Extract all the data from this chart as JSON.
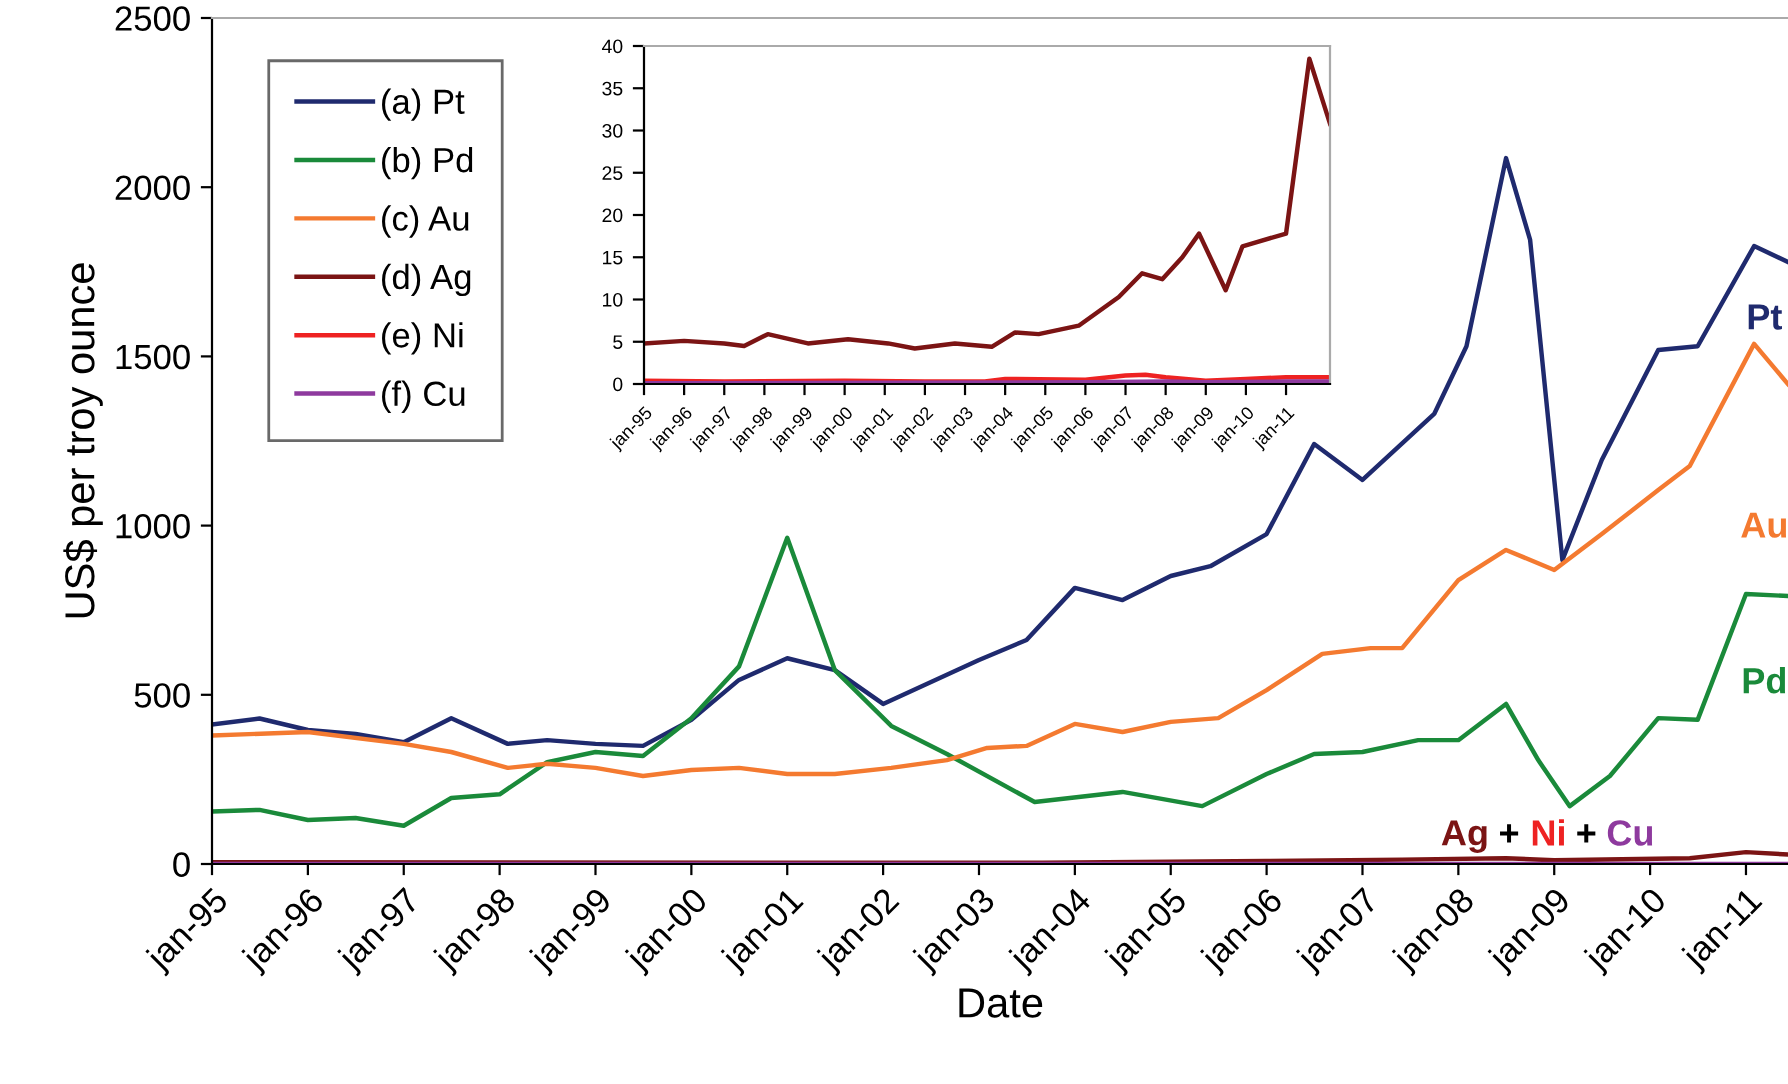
{
  "chart_data": [
    {
      "type": "line",
      "xlabel": "Date",
      "ylabel": "US$ per troy ounce",
      "legend": "top left",
      "xlim": [
        "1995-01",
        "2011-06-10"
      ],
      "ylim": [
        0,
        2500
      ],
      "yticks": [
        0,
        500,
        1000,
        1500,
        2000,
        2500
      ],
      "xticks": [
        {
          "value": "1995-01",
          "label": "jan-95"
        },
        {
          "value": "1996-01",
          "label": "jan-96"
        },
        {
          "value": "1997-01",
          "label": "jan-97"
        },
        {
          "value": "1998-01",
          "label": "jan-98"
        },
        {
          "value": "1999-01",
          "label": "jan-99"
        },
        {
          "value": "2000-01",
          "label": "jan-00"
        },
        {
          "value": "2001-01",
          "label": "jan-01"
        },
        {
          "value": "2002-01",
          "label": "jan-02"
        },
        {
          "value": "2003-01",
          "label": "jan-03"
        },
        {
          "value": "2004-01",
          "label": "jan-04"
        },
        {
          "value": "2005-01",
          "label": "jan-05"
        },
        {
          "value": "2006-01",
          "label": "jan-06"
        },
        {
          "value": "2007-01",
          "label": "jan-07"
        },
        {
          "value": "2008-01",
          "label": "jan-08"
        },
        {
          "value": "2009-01",
          "label": "jan-09"
        },
        {
          "value": "2010-01",
          "label": "jan-10"
        },
        {
          "value": "2011-01",
          "label": "jan-11"
        }
      ],
      "series": [
        {
          "name": "(a) Pt",
          "color": "#1f2a6e",
          "x": [
            "1995-01",
            "1995-07",
            "1996-01",
            "1996-07",
            "1997-01",
            "1997-07",
            "1998-02",
            "1998-07",
            "1999-01",
            "1999-07",
            "2000-01",
            "2000-07",
            "2001-01",
            "2001-07",
            "2002-01",
            "2003-01",
            "2003-07",
            "2004-01",
            "2004-07",
            "2005-01",
            "2005-06",
            "2006-01",
            "2006-07",
            "2007-01",
            "2007-10",
            "2008-02",
            "2008-07",
            "2008-10",
            "2009-02",
            "2009-07",
            "2010-02",
            "2010-07",
            "2011-02",
            "2011-06-10"
          ],
          "values": [
            412,
            430,
            396,
            384,
            360,
            431,
            355,
            366,
            355,
            349,
            426,
            544,
            608,
            573,
            473,
            603,
            662,
            816,
            780,
            851,
            880,
            975,
            1241,
            1135,
            1330,
            1530,
            2086,
            1844,
            898,
            1194,
            1519,
            1530,
            1826,
            1779
          ]
        },
        {
          "name": "(b) Pd",
          "color": "#1a8a3a",
          "x": [
            "1995-01",
            "1995-07",
            "1996-01",
            "1996-07",
            "1997-01",
            "1997-07",
            "1998-01",
            "1998-07",
            "1999-01",
            "1999-07",
            "2000-01",
            "2000-07",
            "2001-01",
            "2001-07",
            "2002-02",
            "2002-09",
            "2003-08",
            "2004-07",
            "2005-05",
            "2006-01",
            "2006-07",
            "2007-01",
            "2007-08",
            "2008-01",
            "2008-07",
            "2008-11",
            "2009-03",
            "2009-08",
            "2010-02",
            "2010-07",
            "2011-01",
            "2011-06-10"
          ],
          "values": [
            155,
            160,
            130,
            136,
            113,
            195,
            206,
            301,
            331,
            319,
            431,
            584,
            964,
            573,
            408,
            325,
            183,
            213,
            171,
            266,
            325,
            331,
            366,
            366,
            473,
            307,
            171,
            260,
            431,
            426,
            798,
            792
          ]
        },
        {
          "name": "(c) Au",
          "color": "#f47a30",
          "x": [
            "1995-01",
            "1996-01",
            "1997-01",
            "1997-07",
            "1998-02",
            "1998-07",
            "1999-01",
            "1999-07",
            "2000-01",
            "2000-07",
            "2001-01",
            "2001-07",
            "2002-02",
            "2002-09",
            "2003-02",
            "2003-07",
            "2004-01",
            "2004-07",
            "2005-01",
            "2005-07",
            "2006-01",
            "2006-08",
            "2007-02",
            "2007-06",
            "2008-01",
            "2008-07",
            "2009-01",
            "2009-07",
            "2010-02",
            "2010-06",
            "2011-02",
            "2011-06-10"
          ],
          "values": [
            380,
            390,
            355,
            331,
            284,
            296,
            284,
            260,
            278,
            284,
            266,
            266,
            284,
            307,
            343,
            349,
            414,
            390,
            420,
            431,
            514,
            621,
            638,
            638,
            839,
            928,
            869,
            975,
            1105,
            1176,
            1537,
            1418
          ]
        },
        {
          "name": "(d) Ag",
          "color": "#7b1414",
          "x": [
            "1995-01",
            "2001-09",
            "2003-09",
            "2006-01",
            "2007-06",
            "2008-07",
            "2009-01",
            "2010-06",
            "2011-01",
            "2011-06-10"
          ],
          "values": [
            5,
            4,
            4,
            9,
            13,
            17,
            11,
            17,
            35,
            28
          ]
        },
        {
          "name": "(e) Ni",
          "color": "#ee2222"
        },
        {
          "name": "(f) Cu",
          "color": "#8e3a9e",
          "x": [
            "1995-01",
            "2011-06-10"
          ],
          "values": [
            0,
            0
          ]
        }
      ],
      "annotations": [
        "Pt",
        "Au",
        "Pd",
        "Ag",
        "+",
        "Ni",
        "+",
        "Cu"
      ]
    },
    {
      "type": "line",
      "xlim": [
        "1995-01",
        "2012-02-05"
      ],
      "ylim": [
        0,
        40
      ],
      "yticks": [
        0,
        5,
        10,
        15,
        20,
        25,
        30,
        35,
        40
      ],
      "xticks": [
        {
          "value": "1995-01",
          "label": "jan-95"
        },
        {
          "value": "1996-01",
          "label": "jan-96"
        },
        {
          "value": "1997-01",
          "label": "jan-97"
        },
        {
          "value": "1998-01",
          "label": "jan-98"
        },
        {
          "value": "1999-01",
          "label": "jan-99"
        },
        {
          "value": "2000-01",
          "label": "jan-00"
        },
        {
          "value": "2001-01",
          "label": "jan-01"
        },
        {
          "value": "2002-01",
          "label": "jan-02"
        },
        {
          "value": "2003-01",
          "label": "jan-03"
        },
        {
          "value": "2004-01",
          "label": "jan-04"
        },
        {
          "value": "2005-01",
          "label": "jan-05"
        },
        {
          "value": "2006-01",
          "label": "jan-06"
        },
        {
          "value": "2007-01",
          "label": "jan-07"
        },
        {
          "value": "2008-01",
          "label": "jan-08"
        },
        {
          "value": "2009-01",
          "label": "jan-09"
        },
        {
          "value": "2010-01",
          "label": "jan-10"
        },
        {
          "value": "2011-01",
          "label": "jan-11"
        }
      ],
      "series": [
        {
          "color": "#7b1414",
          "x": [
            "1995-01",
            "1996-01",
            "1997-01",
            "1997-07",
            "1998-02",
            "1999-02",
            "2000-02",
            "2001-02",
            "2001-10",
            "2002-10",
            "2003-09",
            "2004-04",
            "2004-11",
            "2005-11",
            "2006-11",
            "2007-06",
            "2007-12",
            "2008-06",
            "2008-11",
            "2009-07",
            "2009-12",
            "2011-01",
            "2011-08",
            "2012-02-05"
          ],
          "values": [
            4.8,
            5.1,
            4.8,
            4.5,
            5.9,
            4.8,
            5.3,
            4.8,
            4.2,
            4.8,
            4.4,
            6.1,
            5.9,
            6.9,
            10.3,
            13.1,
            12.4,
            15,
            17.8,
            11.1,
            16.3,
            17.8,
            38.5,
            30.8
          ]
        },
        {
          "color": "#ee2222",
          "x": [
            "1995-01",
            "1997-01",
            "2000-01",
            "2002-01",
            "2003-07",
            "2004-01",
            "2006-01",
            "2007-01",
            "2007-07",
            "2008-01",
            "2009-01",
            "2010-01",
            "2011-01",
            "2012-02-05"
          ],
          "values": [
            0.4,
            0.3,
            0.4,
            0.3,
            0.3,
            0.6,
            0.5,
            1,
            1.1,
            0.8,
            0.4,
            0.6,
            0.8,
            0.8
          ]
        },
        {
          "color": "#8e3a9e",
          "x": [
            "1995-01",
            "2006-01",
            "2008-01",
            "2009-01",
            "2011-01",
            "2012-02-05"
          ],
          "values": [
            0.1,
            0.2,
            0.3,
            0.2,
            0.3,
            0.3
          ]
        }
      ]
    }
  ]
}
